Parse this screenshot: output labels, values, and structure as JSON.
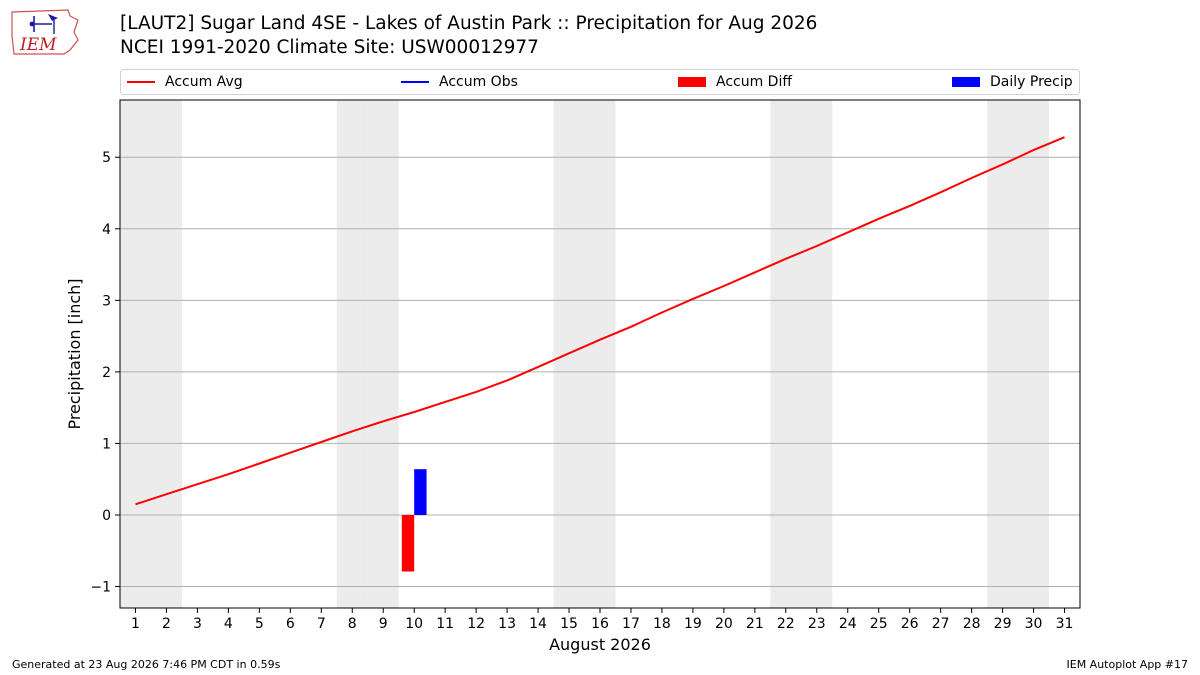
{
  "header": {
    "logo_text": "IEM",
    "title_line1": "[LAUT2] Sugar Land 4SE - Lakes of Austin Park :: Precipitation for Aug 2026",
    "title_line2": "NCEI 1991-2020 Climate Site: USW00012977"
  },
  "legend": {
    "items": [
      {
        "label": "Accum Avg",
        "kind": "line",
        "color": "#ff0000"
      },
      {
        "label": "Accum Obs",
        "kind": "line",
        "color": "#0000ff"
      },
      {
        "label": "Accum Diff",
        "kind": "patch",
        "color": "#ff0000"
      },
      {
        "label": "Daily Precip",
        "kind": "patch",
        "color": "#0000ff"
      }
    ]
  },
  "chart_data": {
    "type": "line",
    "xlabel": "August 2026",
    "ylabel": "Precipitation [inch]",
    "ylim": [
      -1.3,
      5.8
    ],
    "yticks": [
      -1,
      0,
      1,
      2,
      3,
      4,
      5
    ],
    "xlim": [
      0.5,
      31.5
    ],
    "days": [
      1,
      2,
      3,
      4,
      5,
      6,
      7,
      8,
      9,
      10,
      11,
      12,
      13,
      14,
      15,
      16,
      17,
      18,
      19,
      20,
      21,
      22,
      23,
      24,
      25,
      26,
      27,
      28,
      29,
      30,
      31
    ],
    "weekend_days": [
      1,
      2,
      8,
      9,
      15,
      16,
      22,
      23,
      29,
      30
    ],
    "grid": "horizontal",
    "series": [
      {
        "name": "Accum Avg",
        "type": "line",
        "color": "#ff0000",
        "x": [
          1,
          2,
          3,
          4,
          5,
          6,
          7,
          8,
          9,
          10,
          11,
          12,
          13,
          14,
          15,
          16,
          17,
          18,
          19,
          20,
          21,
          22,
          23,
          24,
          25,
          26,
          27,
          28,
          29,
          30,
          31
        ],
        "values": [
          0.15,
          0.29,
          0.43,
          0.57,
          0.72,
          0.87,
          1.02,
          1.17,
          1.31,
          1.44,
          1.58,
          1.72,
          1.88,
          2.07,
          2.26,
          2.45,
          2.63,
          2.83,
          3.02,
          3.2,
          3.39,
          3.58,
          3.76,
          3.95,
          4.14,
          4.32,
          4.51,
          4.71,
          4.9,
          5.1,
          5.28
        ]
      },
      {
        "name": "Accum Diff",
        "type": "bar",
        "color": "#ff0000",
        "x": [
          10
        ],
        "values": [
          -0.79
        ],
        "offset": -0.2
      },
      {
        "name": "Daily Precip",
        "type": "bar",
        "color": "#0000ff",
        "x": [
          10
        ],
        "values": [
          0.64
        ],
        "offset": 0.2
      }
    ]
  },
  "footer": {
    "generated": "Generated at 23 Aug 2026 7:46 PM CDT in 0.59s",
    "app": "IEM Autoplot App #17"
  }
}
